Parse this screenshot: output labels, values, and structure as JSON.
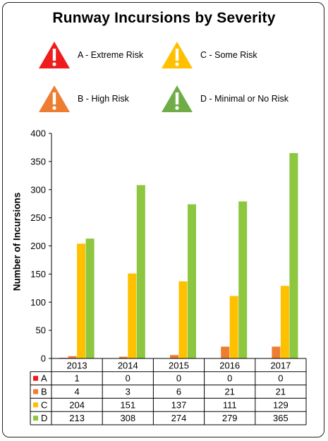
{
  "title": "Runway Incursions by Severity",
  "legend": [
    {
      "key": "A",
      "label": "A - Extreme Risk",
      "color": "#ee1c1c"
    },
    {
      "key": "B",
      "label": "B - High Risk",
      "color": "#ed7d31"
    },
    {
      "key": "C",
      "label": "C - Some Risk",
      "color": "#ffc000"
    },
    {
      "key": "D",
      "label": "D - Minimal or No Risk",
      "color": "#70ad47"
    }
  ],
  "chart_data": {
    "type": "bar",
    "title": "Runway Incursions by Severity",
    "ylabel": "Number of Incursions",
    "xlabel": "",
    "categories": [
      "2013",
      "2014",
      "2015",
      "2016",
      "2017"
    ],
    "ylim": [
      0,
      400
    ],
    "yticks": [
      0,
      50,
      100,
      150,
      200,
      250,
      300,
      350,
      400
    ],
    "series": [
      {
        "name": "A",
        "color": "#ee1c1c",
        "values": [
          1,
          0,
          0,
          0,
          0
        ]
      },
      {
        "name": "B",
        "color": "#ed7d31",
        "values": [
          4,
          3,
          6,
          21,
          21
        ]
      },
      {
        "name": "C",
        "color": "#ffc000",
        "values": [
          204,
          151,
          137,
          111,
          129
        ]
      },
      {
        "name": "D",
        "color": "#8dc63f",
        "values": [
          213,
          308,
          274,
          279,
          365
        ]
      }
    ],
    "grid": false,
    "data_table": true
  }
}
